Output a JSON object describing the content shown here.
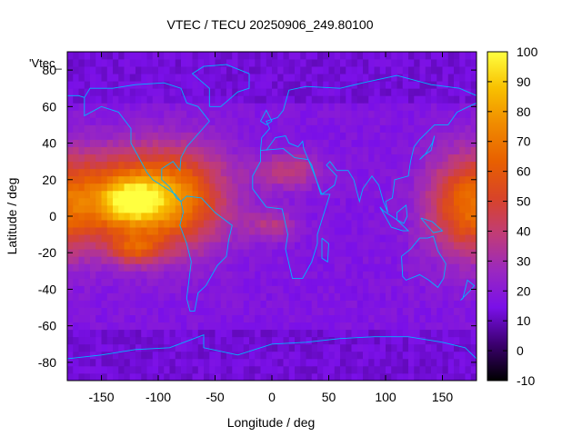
{
  "chart_data": {
    "type": "heatmap",
    "title": "VTEC / TECU 20250906_249.80100",
    "xlabel": "Longitude / deg",
    "ylabel": "Latitude / deg",
    "xlim": [
      -180,
      180
    ],
    "ylim": [
      -90,
      90
    ],
    "x_ticks": [
      -150,
      -100,
      -50,
      0,
      50,
      100,
      150
    ],
    "y_ticks": [
      -80,
      -60,
      -40,
      -20,
      0,
      20,
      40,
      60,
      80
    ],
    "colorbar": {
      "range": [
        -10,
        100
      ],
      "ticks": [
        -10,
        0,
        10,
        20,
        30,
        40,
        50,
        60,
        70,
        80,
        90,
        100
      ],
      "palette": [
        "#000000",
        "#3c0070",
        "#7a10e8",
        "#9a28c0",
        "#c03c78",
        "#d84428",
        "#e86000",
        "#f08a00",
        "#f8c000",
        "#ffff40"
      ]
    },
    "series_label": "'Vtec_",
    "grid": false,
    "coastline_color": "#00b4ff",
    "enhancements": [
      {
        "lon": -120,
        "lat": 10,
        "sx": 45,
        "sy": 18,
        "v": 52
      },
      {
        "lon": -125,
        "lat": 8,
        "sx": 18,
        "sy": 8,
        "v": 35
      },
      {
        "lon": -120,
        "lat": -18,
        "sx": 16,
        "sy": 6,
        "v": 28
      },
      {
        "lon": -80,
        "lat": 10,
        "sx": 30,
        "sy": 20,
        "v": 25
      },
      {
        "lon": 15,
        "lat": 25,
        "sx": 20,
        "sy": 7,
        "v": 22
      },
      {
        "lon": 0,
        "lat": -5,
        "sx": 15,
        "sy": 6,
        "v": 18
      },
      {
        "lon": 170,
        "lat": 5,
        "sx": 25,
        "sy": 20,
        "v": 35
      }
    ],
    "background_level": 17
  }
}
